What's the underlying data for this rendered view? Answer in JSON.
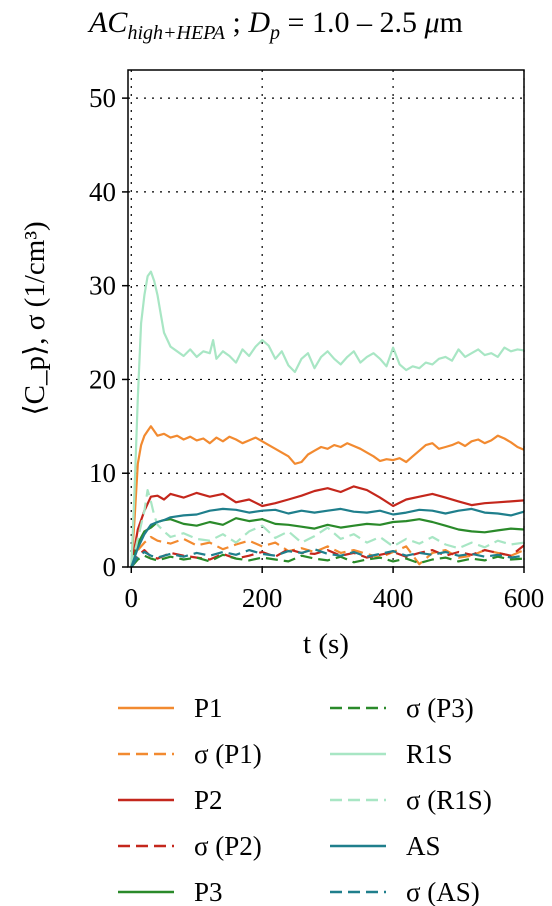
{
  "chart_data": {
    "type": "line",
    "title": {
      "main": "AC",
      "subscript": "high+HEPA",
      "sep": " ; ",
      "var": "D",
      "var_sub": "p",
      "range": " = 1.0 – 2.5 ",
      "unit_mu": "μ",
      "unit_rest": "m"
    },
    "xlabel": "t (s)",
    "ylabel": "⟨C_p⟩, σ (1/cm³)",
    "xlim": [
      -5,
      600
    ],
    "ylim": [
      0,
      53
    ],
    "xticks": [
      0,
      200,
      400,
      600
    ],
    "yticks": [
      0,
      10,
      20,
      30,
      40,
      50
    ],
    "grid": true,
    "legend_position": "bottom, two columns",
    "series": [
      {
        "name": "P1",
        "color": "#f28a30",
        "dash": false,
        "x": [
          0,
          5,
          10,
          15,
          20,
          25,
          30,
          40,
          50,
          60,
          70,
          80,
          90,
          100,
          110,
          120,
          130,
          140,
          150,
          160,
          170,
          180,
          190,
          200,
          210,
          220,
          230,
          240,
          250,
          260,
          270,
          280,
          290,
          300,
          310,
          320,
          330,
          340,
          350,
          360,
          370,
          380,
          390,
          400,
          410,
          420,
          430,
          440,
          450,
          460,
          470,
          480,
          490,
          500,
          510,
          520,
          530,
          540,
          550,
          560,
          570,
          580,
          590,
          600
        ],
        "y": [
          0,
          5,
          11,
          13,
          14,
          14.5,
          15,
          14,
          14.2,
          13.8,
          14,
          13.6,
          13.9,
          13.5,
          13.7,
          13.2,
          13.8,
          13.4,
          13.9,
          13.6,
          13.2,
          13.5,
          13.8,
          13.4,
          13,
          12.6,
          12.2,
          11.8,
          11,
          11.2,
          12,
          12.4,
          12.8,
          12.6,
          13,
          12.8,
          13.2,
          12.9,
          12.6,
          12.2,
          11.8,
          11.3,
          11.5,
          11.4,
          11.6,
          11.2,
          11.8,
          12.4,
          13,
          13.2,
          12.6,
          12.8,
          13,
          13.3,
          12.9,
          13.4,
          13.6,
          13.2,
          13.5,
          14,
          13.7,
          13.3,
          12.8,
          12.5
        ]
      },
      {
        "name": "σ (P1)",
        "color": "#f28a30",
        "dash": true,
        "x": [
          0,
          10,
          20,
          30,
          40,
          60,
          80,
          100,
          120,
          140,
          160,
          180,
          200,
          220,
          240,
          260,
          280,
          300,
          320,
          340,
          360,
          380,
          400,
          420,
          440,
          460,
          480,
          500,
          520,
          540,
          560,
          580,
          600
        ],
        "y": [
          0,
          1.8,
          2.6,
          3.2,
          2.8,
          2.5,
          3,
          2.3,
          2.6,
          1.9,
          2.4,
          2.8,
          2.2,
          2.6,
          1.7,
          2,
          1.6,
          2.2,
          1.5,
          1.8,
          1.4,
          1,
          1.6,
          2.2,
          0.3,
          1.5,
          1.8,
          1,
          1.2,
          1.8,
          1.5,
          1.2,
          1.8
        ]
      },
      {
        "name": "P2",
        "color": "#c4271c",
        "dash": false,
        "x": [
          0,
          10,
          20,
          30,
          40,
          50,
          60,
          80,
          100,
          120,
          140,
          160,
          180,
          200,
          220,
          240,
          260,
          280,
          300,
          320,
          340,
          360,
          380,
          400,
          420,
          440,
          460,
          480,
          500,
          520,
          540,
          560,
          580,
          600
        ],
        "y": [
          0,
          4,
          6,
          7.5,
          7.6,
          7.2,
          7.8,
          7.4,
          7.9,
          7.5,
          7.8,
          6.9,
          7.2,
          6.5,
          6.8,
          7.2,
          7.6,
          8.1,
          8.4,
          8,
          8.6,
          8.2,
          7.4,
          6.5,
          7.2,
          7.5,
          7.8,
          7.4,
          7,
          6.6,
          6.8,
          6.9,
          7,
          7.1
        ]
      },
      {
        "name": "σ (P2)",
        "color": "#c4271c",
        "dash": true,
        "x": [
          0,
          10,
          20,
          30,
          40,
          60,
          80,
          100,
          120,
          140,
          160,
          180,
          200,
          220,
          240,
          260,
          280,
          300,
          320,
          340,
          360,
          380,
          400,
          420,
          440,
          460,
          480,
          500,
          520,
          540,
          560,
          580,
          600
        ],
        "y": [
          0,
          1.2,
          1.8,
          1.1,
          0.9,
          1.5,
          1.2,
          1,
          0.8,
          1.4,
          0.9,
          1.2,
          1.6,
          1.1,
          1.9,
          1.5,
          1.4,
          1.8,
          1.2,
          1.5,
          1,
          1.3,
          1.6,
          1.1,
          1.5,
          1.8,
          1.2,
          1.6,
          1.3,
          1.8,
          1.5,
          1.2,
          2.3
        ]
      },
      {
        "name": "P3",
        "color": "#2a8a2a",
        "dash": false,
        "x": [
          0,
          10,
          20,
          30,
          40,
          50,
          60,
          80,
          100,
          120,
          140,
          160,
          180,
          200,
          220,
          240,
          260,
          280,
          300,
          320,
          340,
          360,
          380,
          400,
          420,
          440,
          460,
          480,
          500,
          520,
          540,
          560,
          580,
          600
        ],
        "y": [
          0,
          2.5,
          3.8,
          4.2,
          4.8,
          5,
          5.1,
          4.6,
          4.4,
          4.8,
          4.5,
          5.2,
          4.9,
          5.1,
          4.6,
          4.5,
          4.3,
          4.1,
          4.5,
          4.2,
          4.4,
          4.6,
          4.5,
          4.8,
          4.9,
          5.1,
          4.8,
          4.4,
          4,
          3.8,
          3.7,
          3.9,
          4.1,
          4
        ]
      },
      {
        "name": "σ (P3)",
        "color": "#2a8a2a",
        "dash": true,
        "x": [
          0,
          10,
          20,
          30,
          40,
          60,
          80,
          100,
          120,
          140,
          160,
          180,
          200,
          220,
          240,
          260,
          280,
          300,
          320,
          340,
          360,
          380,
          400,
          420,
          440,
          460,
          480,
          500,
          520,
          540,
          560,
          580,
          600
        ],
        "y": [
          0,
          0.8,
          1.2,
          0.9,
          0.7,
          1.1,
          0.8,
          1,
          0.6,
          1.3,
          0.9,
          0.7,
          1,
          0.8,
          0.6,
          1.2,
          0.9,
          0.7,
          1.1,
          0.5,
          0.8,
          1,
          0.6,
          0.9,
          0.4,
          0.8,
          1,
          0.6,
          0.9,
          0.7,
          1.1,
          0.8,
          0.9
        ]
      },
      {
        "name": "R1S",
        "color": "#a8e6c4",
        "dash": false,
        "x": [
          0,
          5,
          10,
          15,
          20,
          25,
          30,
          35,
          40,
          45,
          50,
          60,
          70,
          80,
          90,
          100,
          110,
          120,
          125,
          130,
          140,
          150,
          160,
          170,
          180,
          190,
          200,
          210,
          220,
          230,
          240,
          250,
          260,
          270,
          280,
          290,
          300,
          310,
          320,
          330,
          340,
          350,
          360,
          370,
          380,
          390,
          400,
          410,
          420,
          430,
          440,
          450,
          460,
          470,
          480,
          490,
          500,
          510,
          520,
          530,
          540,
          550,
          560,
          570,
          580,
          590,
          600
        ],
        "y": [
          0,
          8,
          18,
          26,
          29,
          31,
          31.5,
          30.5,
          29,
          27,
          25,
          23.5,
          23,
          22.5,
          23.2,
          22.4,
          23,
          22.8,
          24.2,
          22.2,
          23,
          22.5,
          21.8,
          23.2,
          22.5,
          23.5,
          24.2,
          23.6,
          22.2,
          23,
          21.5,
          20.8,
          22.2,
          22.8,
          21.2,
          22.4,
          23,
          22.2,
          21.6,
          22.4,
          23,
          21.8,
          22.4,
          22.8,
          22.2,
          21.4,
          23.4,
          21.6,
          21,
          21.4,
          21.2,
          21.8,
          21.6,
          22.2,
          22.4,
          22,
          23.2,
          22.4,
          22.8,
          23.2,
          22.6,
          22.8,
          22.4,
          23.4,
          23,
          23.2,
          23.1
        ]
      },
      {
        "name": "σ (R1S)",
        "color": "#a8e6c4",
        "dash": true,
        "x": [
          0,
          10,
          20,
          25,
          30,
          35,
          40,
          50,
          60,
          80,
          100,
          120,
          140,
          160,
          180,
          200,
          220,
          240,
          260,
          280,
          300,
          320,
          340,
          360,
          380,
          400,
          420,
          440,
          460,
          480,
          500,
          520,
          540,
          560,
          580,
          600
        ],
        "y": [
          0,
          3,
          6,
          8.2,
          7,
          5.5,
          4.5,
          3.8,
          3.2,
          3.6,
          3,
          2.8,
          3.5,
          2.6,
          3.8,
          4.4,
          3.1,
          3.8,
          2.6,
          3.3,
          4.2,
          3,
          3.5,
          2.6,
          3.2,
          2.2,
          3,
          2.5,
          3.2,
          2.4,
          2,
          2.6,
          2.1,
          2.8,
          2.4,
          2.6
        ]
      },
      {
        "name": "AS",
        "color": "#1f7f8c",
        "dash": false,
        "x": [
          0,
          10,
          20,
          30,
          40,
          50,
          60,
          80,
          100,
          120,
          140,
          160,
          180,
          200,
          220,
          240,
          260,
          280,
          300,
          320,
          340,
          360,
          380,
          400,
          420,
          440,
          460,
          480,
          500,
          520,
          540,
          560,
          580,
          600
        ],
        "y": [
          0,
          2,
          3.5,
          4.5,
          4.8,
          5,
          5.3,
          5.5,
          5.6,
          6,
          6.2,
          6.1,
          5.8,
          6,
          6.1,
          5.7,
          6,
          5.8,
          6,
          6.2,
          5.9,
          5.8,
          6,
          5.6,
          5.8,
          6.1,
          6,
          5.7,
          6,
          6.2,
          5.8,
          5.7,
          5.5,
          5.9
        ]
      },
      {
        "name": "σ (AS)",
        "color": "#1f7f8c",
        "dash": true,
        "x": [
          0,
          10,
          20,
          30,
          40,
          60,
          80,
          100,
          120,
          140,
          160,
          180,
          200,
          220,
          240,
          260,
          280,
          300,
          320,
          340,
          360,
          380,
          400,
          420,
          440,
          460,
          480,
          500,
          520,
          540,
          560,
          580,
          600
        ],
        "y": [
          0,
          1.1,
          1.6,
          1.2,
          1,
          1.4,
          1.1,
          1.5,
          1.2,
          1.6,
          1.3,
          1.8,
          1.4,
          1.2,
          1.7,
          1.5,
          1.9,
          1.4,
          1.2,
          1.6,
          1.1,
          1.4,
          1.7,
          1.2,
          1.5,
          1.3,
          1.6,
          1.2,
          1.4,
          1.1,
          1.3,
          1,
          1.2
        ]
      }
    ]
  }
}
